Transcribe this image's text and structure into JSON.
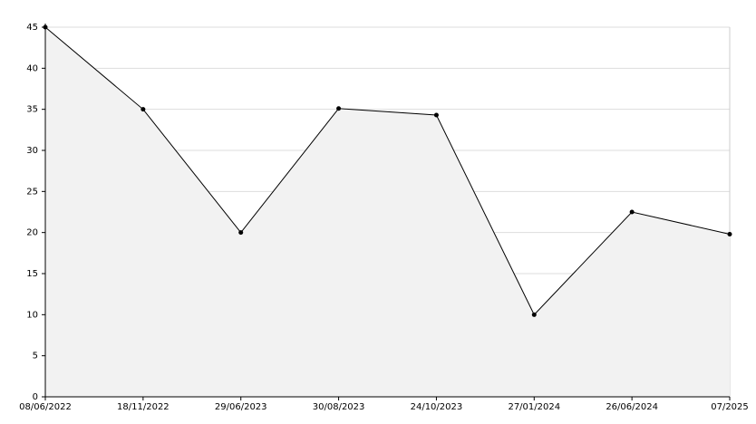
{
  "chart_data": {
    "type": "area",
    "categories": [
      "08/06/2022",
      "18/11/2022",
      "29/06/2023",
      "30/08/2023",
      "24/10/2023",
      "27/01/2024",
      "26/06/2024",
      "07/2025"
    ],
    "values": [
      45,
      35,
      20,
      35.1,
      34.3,
      10,
      22.5,
      19.8
    ],
    "color": "#000000",
    "fill_color": "#f2f2f2",
    "ylim": [
      0,
      45
    ],
    "yticks": [
      0,
      5,
      10,
      15,
      20,
      25,
      30,
      35,
      40,
      45
    ],
    "grid": true
  }
}
